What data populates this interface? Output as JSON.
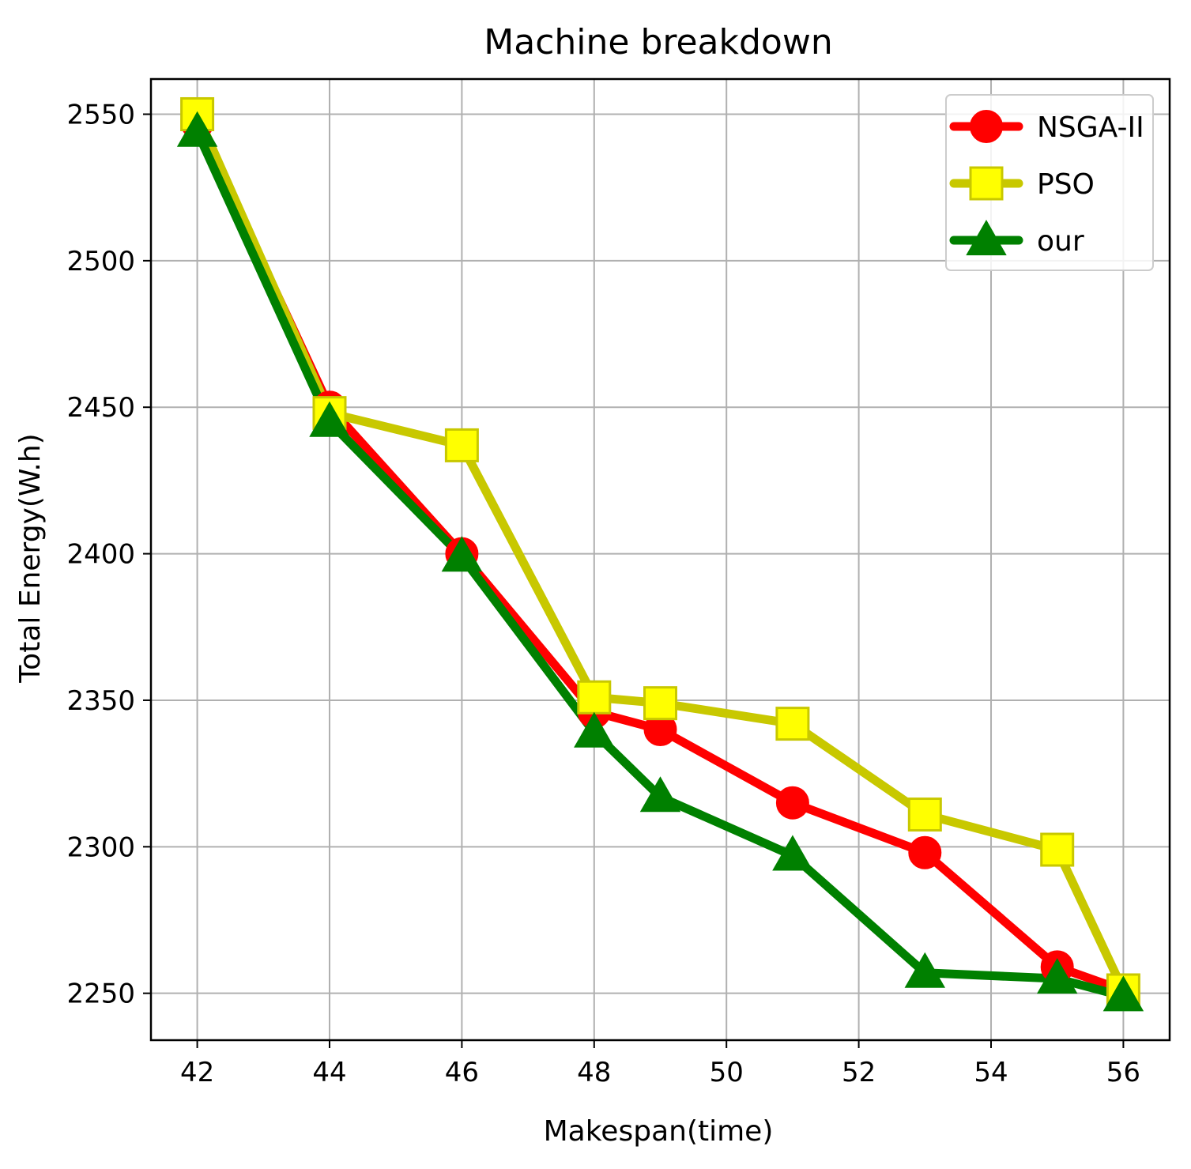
{
  "chart_data": {
    "type": "line",
    "title": "Machine breakdown",
    "xlabel": "Makespan(time)",
    "ylabel": "Total Energy(W.h)",
    "xlim": [
      41.3,
      56.7
    ],
    "ylim": [
      2234,
      2562
    ],
    "xticks": [
      42,
      44,
      46,
      48,
      50,
      52,
      54,
      56
    ],
    "yticks": [
      2250,
      2300,
      2350,
      2400,
      2450,
      2500,
      2550
    ],
    "grid": true,
    "legend_position": "top-right",
    "series": [
      {
        "name": "NSGA-II",
        "color": "#ff0000",
        "marker": "circle",
        "x": [
          42,
          44,
          46,
          48,
          49,
          51,
          53,
          55,
          56
        ],
        "y": [
          2547,
          2450,
          2400,
          2346,
          2340,
          2315,
          2298,
          2259,
          2251
        ]
      },
      {
        "name": "PSO",
        "color": "#c8c800",
        "marker": "square",
        "x": [
          42,
          44,
          46,
          48,
          49,
          51,
          53,
          55,
          56
        ],
        "y": [
          2550,
          2448,
          2437,
          2351,
          2349,
          2342,
          2311,
          2299,
          2251
        ]
      },
      {
        "name": "our",
        "color": "#008000",
        "marker": "triangle",
        "x": [
          42,
          44,
          46,
          48,
          49,
          51,
          53,
          55,
          56
        ],
        "y": [
          2544,
          2445,
          2399,
          2339,
          2317,
          2297,
          2257,
          2255,
          2249
        ]
      }
    ]
  }
}
